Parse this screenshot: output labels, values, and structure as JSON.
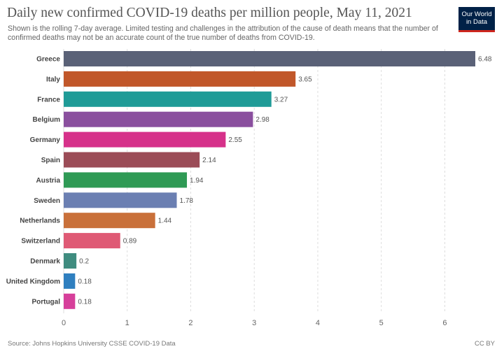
{
  "header": {
    "title": "Daily new confirmed COVID-19 deaths per million people, May 11, 2021",
    "subtitle": "Shown is the rolling 7-day average. Limited testing and challenges in the attribution of the cause of death means that the number of confirmed deaths may not be an accurate count of the true number of deaths from COVID-19."
  },
  "logo": {
    "line1": "Our World",
    "line2": "in Data",
    "bg": "#002147",
    "accent": "#ce261e"
  },
  "footer": {
    "source": "Source: Johns Hopkins University CSSE COVID-19 Data",
    "license": "CC BY"
  },
  "chart_data": {
    "type": "bar",
    "orientation": "horizontal",
    "title": "Daily new confirmed COVID-19 deaths per million people, May 11, 2021",
    "xlabel": "",
    "ylabel": "",
    "xlim": [
      0,
      6.48
    ],
    "x_ticks": [
      0,
      1,
      2,
      3,
      4,
      5,
      6
    ],
    "grid": "vertical dashed",
    "categories": [
      "Greece",
      "Italy",
      "France",
      "Belgium",
      "Germany",
      "Spain",
      "Austria",
      "Sweden",
      "Netherlands",
      "Switzerland",
      "Denmark",
      "United Kingdom",
      "Portugal"
    ],
    "values": [
      6.48,
      3.65,
      3.27,
      2.98,
      2.55,
      2.14,
      1.94,
      1.78,
      1.44,
      0.89,
      0.2,
      0.18,
      0.18
    ],
    "value_labels": [
      "6.48",
      "3.65",
      "3.27",
      "2.98",
      "2.55",
      "2.14",
      "1.94",
      "1.78",
      "1.44",
      "0.89",
      "0.2",
      "0.18",
      "0.18"
    ],
    "colors": [
      "#5a6177",
      "#c1572a",
      "#1f9b97",
      "#8a4f9e",
      "#d6318a",
      "#9b4c57",
      "#2f9a55",
      "#6b7fb2",
      "#c9703a",
      "#df5a75",
      "#3f8c7f",
      "#2f7fbf",
      "#d63f9a"
    ]
  }
}
